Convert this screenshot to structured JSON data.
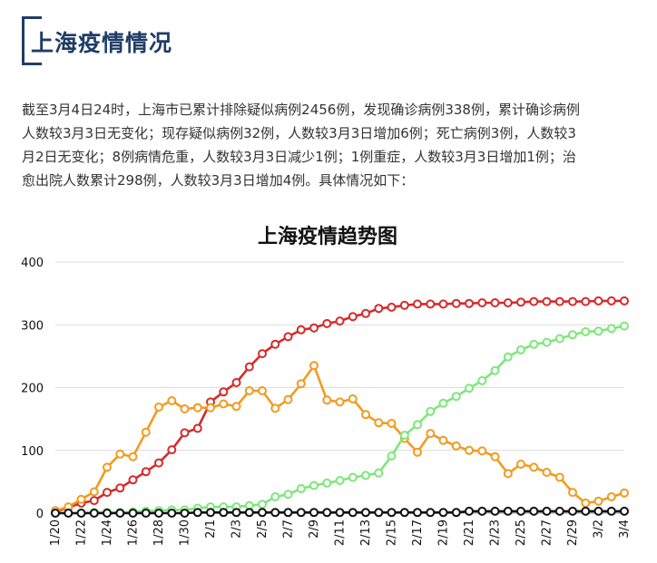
{
  "header": {
    "title": "上海疫情情况"
  },
  "paragraph": [
    "截至3月4日24时，上海市已累计排除疑似病例2456例，发现确诊病例338例，累计确诊病例",
    "人数较3月3日无变化；现存疑似病例32例，人数较3月3日增加6例；死亡病例3例，人数较3",
    "月2日无变化；8例病情危重，人数较3月3日减少1例；1例重症，人数较3月3日增加1例；治",
    "愈出院人数累计298例，人数较3月3日增加4例。具体情况如下："
  ],
  "chart_data": {
    "type": "line",
    "title": "上海疫情趋势图",
    "ylim": [
      0,
      400
    ],
    "yticks": [
      "0",
      "100",
      "200",
      "300",
      "400"
    ],
    "grid": true,
    "legend": "none",
    "x": [
      "1/20",
      "1/21",
      "1/22",
      "1/23",
      "1/24",
      "1/25",
      "1/26",
      "1/27",
      "1/28",
      "1/29",
      "1/30",
      "1/31",
      "2/1",
      "2/2",
      "2/3",
      "2/4",
      "2/5",
      "2/6",
      "2/7",
      "2/8",
      "2/9",
      "2/10",
      "2/11",
      "2/12",
      "2/13",
      "2/14",
      "2/15",
      "2/16",
      "2/17",
      "2/18",
      "2/19",
      "2/20",
      "2/21",
      "2/22",
      "2/23",
      "2/24",
      "2/25",
      "2/26",
      "2/27",
      "2/28",
      "2/29",
      "3/1",
      "3/2",
      "3/3",
      "3/4"
    ],
    "xtick_labels": [
      "1/20",
      "1/22",
      "1/24",
      "1/26",
      "1/28",
      "1/30",
      "2/1",
      "2/3",
      "2/5",
      "2/7",
      "2/9",
      "2/11",
      "2/13",
      "2/15",
      "2/17",
      "2/19",
      "2/21",
      "2/23",
      "2/25",
      "2/27",
      "2/29",
      "3/2",
      "3/4"
    ],
    "series": [
      {
        "color": "#d62a2a",
        "values": [
          2,
          9,
          16,
          20,
          33,
          40,
          53,
          66,
          80,
          101,
          128,
          135,
          177,
          193,
          208,
          233,
          254,
          269,
          281,
          292,
          295,
          302,
          306,
          313,
          318,
          326,
          328,
          331,
          333,
          333,
          333,
          334,
          334,
          335,
          335,
          335,
          336,
          337,
          337,
          337,
          337,
          337,
          338,
          338,
          338
        ]
      },
      {
        "color": "#f29b1f",
        "values": [
          4,
          10,
          22,
          34,
          73,
          94,
          90,
          129,
          169,
          179,
          166,
          168,
          168,
          174,
          170,
          195,
          195,
          167,
          181,
          206,
          235,
          180,
          177,
          182,
          157,
          144,
          143,
          119,
          97,
          127,
          116,
          107,
          100,
          99,
          90,
          63,
          78,
          73,
          65,
          57,
          33,
          16,
          19,
          26,
          32
        ]
      },
      {
        "color": "#7de77a",
        "values": [
          0,
          0,
          0,
          1,
          1,
          1,
          2,
          3,
          4,
          5,
          5,
          8,
          10,
          10,
          10,
          12,
          14,
          26,
          30,
          39,
          44,
          48,
          52,
          57,
          60,
          64,
          91,
          124,
          141,
          162,
          175,
          186,
          199,
          211,
          227,
          249,
          260,
          269,
          272,
          278,
          284,
          289,
          290,
          294,
          298
        ]
      },
      {
        "color": "#111111",
        "values": [
          0,
          0,
          0,
          0,
          0,
          0,
          0,
          0,
          0,
          0,
          0,
          1,
          1,
          1,
          1,
          1,
          1,
          1,
          1,
          1,
          1,
          1,
          1,
          1,
          1,
          1,
          1,
          1,
          1,
          1,
          1,
          1,
          3,
          3,
          3,
          3,
          3,
          3,
          3,
          3,
          3,
          3,
          3,
          3,
          3
        ]
      }
    ]
  }
}
